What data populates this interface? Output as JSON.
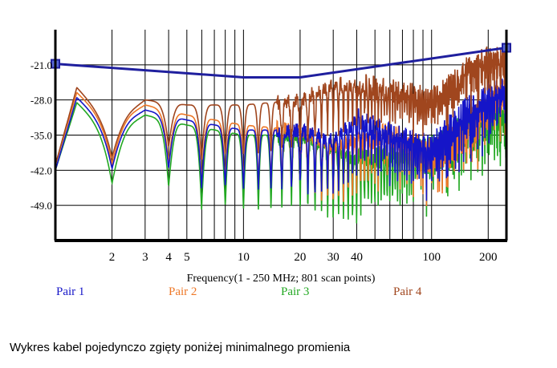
{
  "caption": "Wykres kabel pojedynczo zgięty poniżej minimalnego promienia",
  "chart_data": {
    "type": "line",
    "xscale": "log",
    "xlim": [
      1,
      250
    ],
    "ylim": [
      -56,
      -14
    ],
    "xlabel": "Frequency(1 - 250 MHz; 801 scan points)",
    "ylabel": "",
    "x_ticks": [
      2,
      3,
      4,
      5,
      10,
      20,
      30,
      40,
      100,
      200
    ],
    "x_tick_labels": [
      "2",
      "3",
      "4",
      "5",
      "10",
      "20",
      "30",
      "40",
      "100",
      "200"
    ],
    "x_gridlines": [
      2,
      3,
      4,
      5,
      6,
      7,
      8,
      9,
      10,
      20,
      30,
      40,
      50,
      60,
      70,
      80,
      90,
      100,
      200
    ],
    "y_ticks": [
      -21,
      -28,
      -35,
      -42,
      -49
    ],
    "y_tick_labels": [
      "-21.0",
      "-28.0",
      "-35.0",
      "-42.0",
      "-49.0"
    ],
    "grid": true,
    "legend_position": "bottom",
    "limit_line": {
      "color": "#1f1f9e",
      "points": [
        [
          1,
          -20.8
        ],
        [
          10,
          -23.5
        ],
        [
          20,
          -23.5
        ],
        [
          250,
          -17.6
        ]
      ]
    },
    "series": [
      {
        "name": "Pair 1",
        "color": "#1515c8",
        "env": [
          [
            1,
            -42
          ],
          [
            1.3,
            -27.5
          ],
          [
            2,
            -34
          ],
          [
            3,
            -30
          ],
          [
            5,
            -32
          ],
          [
            10,
            -34
          ],
          [
            20,
            -34
          ],
          [
            30,
            -36
          ],
          [
            40,
            -32
          ],
          [
            60,
            -35
          ],
          [
            100,
            -37
          ],
          [
            150,
            -30
          ],
          [
            200,
            -27
          ],
          [
            250,
            -25
          ]
        ],
        "depth": 12
      },
      {
        "name": "Pair 2",
        "color": "#ee7828",
        "env": [
          [
            1,
            -41
          ],
          [
            1.3,
            -26.5
          ],
          [
            2,
            -33
          ],
          [
            3,
            -29
          ],
          [
            5,
            -31
          ],
          [
            10,
            -33
          ],
          [
            20,
            -34
          ],
          [
            30,
            -37
          ],
          [
            40,
            -36
          ],
          [
            60,
            -35
          ],
          [
            100,
            -38
          ],
          [
            150,
            -33
          ],
          [
            200,
            -28
          ],
          [
            250,
            -26
          ]
        ],
        "depth": 12
      },
      {
        "name": "Pair 3",
        "color": "#22a822",
        "env": [
          [
            1,
            -42
          ],
          [
            1.3,
            -28.5
          ],
          [
            2,
            -35
          ],
          [
            3,
            -31
          ],
          [
            5,
            -33
          ],
          [
            10,
            -35
          ],
          [
            20,
            -35
          ],
          [
            30,
            -38
          ],
          [
            40,
            -40
          ],
          [
            60,
            -39
          ],
          [
            100,
            -37
          ],
          [
            150,
            -33
          ],
          [
            200,
            -30
          ],
          [
            250,
            -31
          ]
        ],
        "depth": 15
      },
      {
        "name": "Pair 4",
        "color": "#a0461e",
        "env": [
          [
            1,
            -41
          ],
          [
            1.3,
            -25.5
          ],
          [
            2,
            -33
          ],
          [
            3,
            -28
          ],
          [
            5,
            -29
          ],
          [
            10,
            -29
          ],
          [
            20,
            -28
          ],
          [
            30,
            -25
          ],
          [
            40,
            -25
          ],
          [
            60,
            -26
          ],
          [
            100,
            -28
          ],
          [
            150,
            -22
          ],
          [
            200,
            -19
          ],
          [
            250,
            -20
          ]
        ],
        "depth": 10
      }
    ]
  }
}
